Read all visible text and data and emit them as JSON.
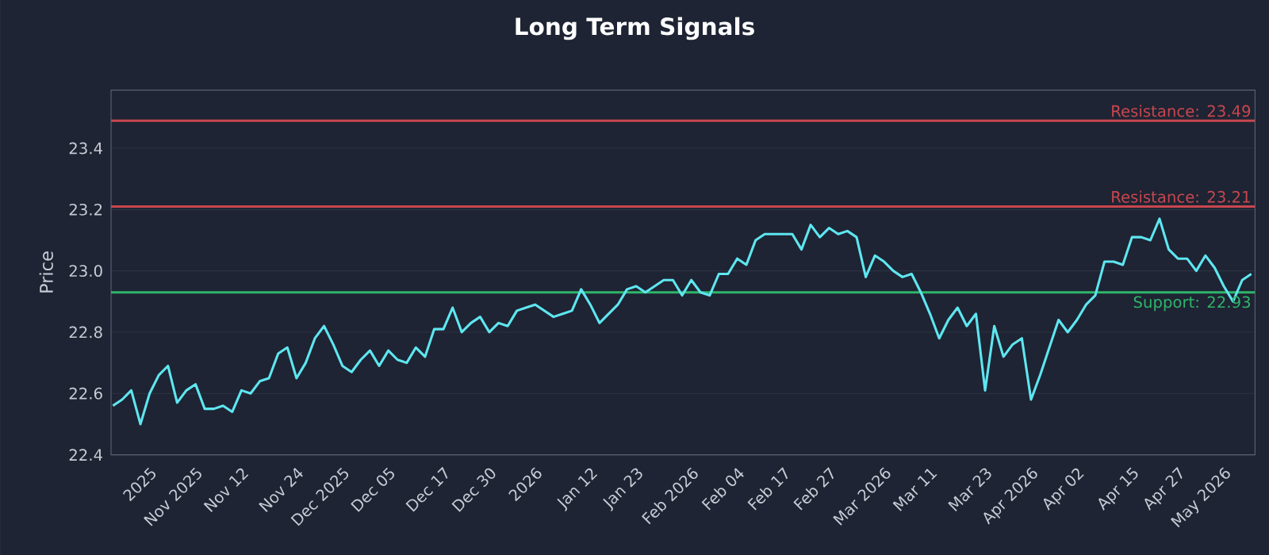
{
  "chart_data": {
    "type": "line",
    "title": "Long Term Signals",
    "ylabel": "Price",
    "categories": [
      null,
      null,
      null,
      null,
      "2025",
      null,
      null,
      null,
      null,
      "Nov 2025",
      null,
      null,
      null,
      null,
      "Nov 12",
      null,
      null,
      null,
      null,
      null,
      "Nov 24",
      null,
      null,
      null,
      null,
      "Dec 2025",
      null,
      null,
      null,
      null,
      "Dec 05",
      null,
      null,
      null,
      null,
      null,
      "Dec 17",
      null,
      null,
      null,
      null,
      "Dec 30",
      null,
      null,
      null,
      null,
      "2026",
      null,
      null,
      null,
      null,
      null,
      "Jan 12",
      null,
      null,
      null,
      null,
      "Jan 23",
      null,
      null,
      null,
      null,
      null,
      "Feb 2026",
      null,
      null,
      null,
      null,
      "Feb 04",
      null,
      null,
      null,
      null,
      "Feb 17",
      null,
      null,
      null,
      null,
      "Feb 27",
      null,
      null,
      null,
      null,
      null,
      "Mar 2026",
      null,
      null,
      null,
      null,
      "Mar 11",
      null,
      null,
      null,
      null,
      null,
      "Mar 23",
      null,
      null,
      null,
      null,
      "Apr 2026",
      null,
      null,
      null,
      null,
      "Apr 02",
      null,
      null,
      null,
      null,
      null,
      "Apr 15",
      null,
      null,
      null,
      null,
      "Apr 27",
      null,
      null,
      null,
      null,
      "May 2026",
      null,
      null,
      null
    ],
    "values": [
      22.56,
      22.58,
      22.61,
      22.5,
      22.6,
      22.66,
      22.69,
      22.57,
      22.61,
      22.63,
      22.55,
      22.55,
      22.56,
      22.54,
      22.61,
      22.6,
      22.64,
      22.65,
      22.73,
      22.75,
      22.65,
      22.7,
      22.78,
      22.82,
      22.76,
      22.69,
      22.67,
      22.71,
      22.74,
      22.69,
      22.74,
      22.71,
      22.7,
      22.75,
      22.72,
      22.81,
      22.81,
      22.88,
      22.8,
      22.83,
      22.85,
      22.8,
      22.83,
      22.82,
      22.87,
      22.88,
      22.89,
      22.87,
      22.85,
      22.86,
      22.87,
      22.94,
      22.89,
      22.83,
      22.86,
      22.89,
      22.94,
      22.95,
      22.93,
      22.95,
      22.97,
      22.97,
      22.92,
      22.97,
      22.93,
      22.92,
      22.99,
      22.99,
      23.04,
      23.02,
      23.1,
      23.12,
      23.12,
      23.12,
      23.12,
      23.07,
      23.15,
      23.11,
      23.14,
      23.12,
      23.13,
      23.11,
      22.98,
      23.05,
      23.03,
      23.0,
      22.98,
      22.99,
      22.93,
      22.86,
      22.78,
      22.84,
      22.88,
      22.82,
      22.86,
      22.61,
      22.82,
      22.72,
      22.76,
      22.78,
      22.58,
      22.66,
      22.75,
      22.84,
      22.8,
      22.84,
      22.89,
      22.92,
      23.03,
      23.03,
      23.02,
      23.11,
      23.11,
      23.1,
      23.17,
      23.07,
      23.04,
      23.04,
      23.0,
      23.05,
      23.01,
      22.95,
      22.9,
      22.97,
      22.99
    ],
    "color": "#5ee6f0",
    "ylim": [
      22.4,
      23.59
    ],
    "yticks": [
      {
        "value": 22.4,
        "label": "22.4"
      },
      {
        "value": 22.6,
        "label": "22.6"
      },
      {
        "value": 22.8,
        "label": "22.8"
      },
      {
        "value": 23.0,
        "label": "23.0"
      },
      {
        "value": 23.2,
        "label": "23.2"
      },
      {
        "value": 23.4,
        "label": "23.4"
      }
    ],
    "grid": "y",
    "ref_lines": [
      {
        "axis": "y",
        "value": 23.49,
        "label": "Resistance: 23.49",
        "color": "#c8464f"
      },
      {
        "axis": "y",
        "value": 23.21,
        "label": "Resistance: 23.21",
        "color": "#c8464f"
      },
      {
        "axis": "y",
        "value": 22.93,
        "label": "Support: 22.93",
        "color": "#2fb56a"
      }
    ]
  }
}
